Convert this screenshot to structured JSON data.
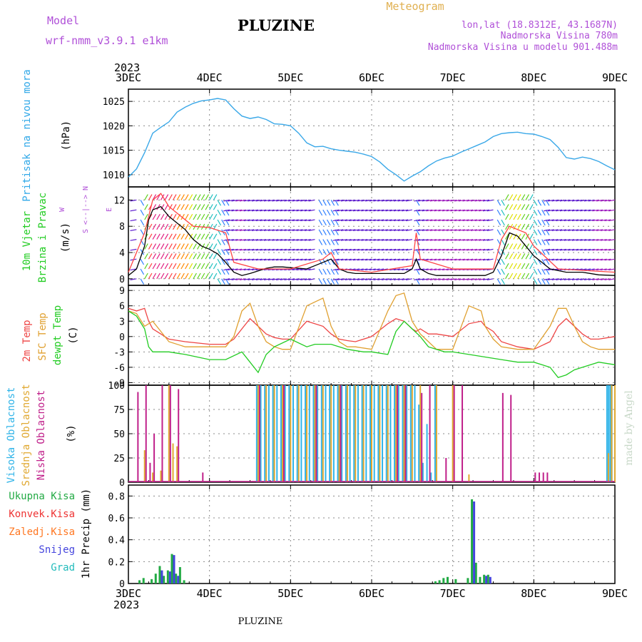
{
  "header": {
    "model_label": "Model",
    "model_value": "wrf-nmm_v3.9.1 e1km",
    "title": "PLUZINE",
    "meteogram_label": "Meteogram",
    "lonlat": "lon,lat (18.8312E, 43.1687N)",
    "altitude": "Nadmorska Visina 780m",
    "model_altitude": "Nadmorska Visina u modelu 901.488m",
    "watermark": "made by Angel",
    "footer": "PLUZINE"
  },
  "time_axis": {
    "year": "2023",
    "labels": [
      "3DEC",
      "4DEC",
      "5DEC",
      "6DEC",
      "7DEC",
      "8DEC",
      "9DEC"
    ]
  },
  "colors": {
    "pressure": "#3aa8e8",
    "temp2m": "#ee4444",
    "sfc_temp": "#e0a030",
    "dewpoint": "#22cc22",
    "high_cloud": "#30b4e8",
    "mid_cloud": "#e0a830",
    "low_cloud": "#c0208a",
    "total_precip": "#22aa44",
    "conv_precip": "#ee3333",
    "frz_precip": "#ff7722",
    "snow": "#4444dd",
    "hail": "#22bbbb",
    "axis": "#000000",
    "grid": "#888888",
    "label_purple": "#b050d8",
    "label_gold": "#e0b050"
  },
  "chart_data": [
    {
      "type": "line",
      "name": "pressure",
      "ylabel": [
        "Pritisak na nivou mora",
        "(hPa)"
      ],
      "yticks": [
        1010,
        1015,
        1020,
        1025
      ],
      "ylim": [
        1007.5,
        1027.5
      ],
      "series": [
        {
          "name": "",
          "x": [
            0,
            0.1,
            0.2,
            0.3,
            0.4,
            0.5,
            0.6,
            0.7,
            0.8,
            0.9,
            1.0,
            1.1,
            1.2,
            1.3,
            1.4,
            1.5,
            1.6,
            1.7,
            1.8,
            1.9,
            2.0,
            2.1,
            2.2,
            2.3,
            2.4,
            2.5,
            2.6,
            2.7,
            2.8,
            2.9,
            3.0,
            3.1,
            3.2,
            3.3,
            3.4,
            3.5,
            3.6,
            3.7,
            3.8,
            3.9,
            4.0,
            4.1,
            4.2,
            4.3,
            4.4,
            4.5,
            4.6,
            4.7,
            4.8,
            4.9,
            5.0,
            5.1,
            5.2,
            5.3,
            5.4,
            5.5,
            5.6,
            5.7,
            5.8,
            5.9,
            6.0
          ],
          "values": [
            1009.5,
            1011.2,
            1014.5,
            1018.5,
            1019.7,
            1020.8,
            1022.8,
            1023.8,
            1024.6,
            1025.1,
            1025.3,
            1025.6,
            1025.3,
            1023.5,
            1022.0,
            1021.5,
            1021.8,
            1021.3,
            1020.4,
            1020.3,
            1020.0,
            1018.5,
            1016.5,
            1015.7,
            1015.8,
            1015.3,
            1015.0,
            1014.8,
            1014.6,
            1014.2,
            1013.7,
            1012.6,
            1011.1,
            1010.0,
            1008.7,
            1009.7,
            1010.6,
            1011.8,
            1012.8,
            1013.4,
            1013.8,
            1014.6,
            1015.3,
            1016.0,
            1016.7,
            1017.8,
            1018.4,
            1018.6,
            1018.7,
            1018.4,
            1018.3,
            1017.8,
            1017.2,
            1015.6,
            1013.5,
            1013.2,
            1013.6,
            1013.3,
            1012.7,
            1011.8,
            1011.0
          ]
        }
      ]
    },
    {
      "type": "line",
      "name": "wind",
      "ylabel": [
        "10m Vjetar",
        "Brzina i Pravac",
        "(m/s)"
      ],
      "compass": {
        "north": "N",
        "south": "S",
        "east": "E",
        "west": "W"
      },
      "yticks": [
        0,
        4,
        8,
        12
      ],
      "ylim": [
        -1,
        14
      ],
      "series": [
        {
          "name": "speed",
          "x": [
            0,
            0.1,
            0.2,
            0.25,
            0.3,
            0.4,
            0.5,
            0.6,
            0.7,
            0.8,
            0.9,
            1.0,
            1.1,
            1.2,
            1.3,
            1.4,
            1.5,
            1.6,
            1.7,
            1.8,
            1.9,
            2.0,
            2.2,
            2.4,
            2.5,
            2.6,
            2.7,
            2.8,
            2.9,
            3.0,
            3.2,
            3.4,
            3.5,
            3.55,
            3.6,
            3.7,
            3.8,
            4.0,
            4.2,
            4.4,
            4.5,
            4.6,
            4.7,
            4.8,
            4.9,
            5.0,
            5.2,
            5.4,
            5.6,
            5.8,
            6.0
          ],
          "values": [
            0.5,
            1.5,
            5.0,
            9.0,
            10.5,
            11.0,
            9.5,
            8.5,
            7.5,
            6.0,
            5.0,
            4.5,
            3.8,
            2.5,
            1.0,
            0.5,
            0.8,
            1.2,
            1.6,
            1.8,
            1.8,
            1.7,
            1.5,
            2.5,
            3.0,
            1.5,
            1.0,
            0.8,
            0.8,
            0.8,
            0.8,
            0.8,
            1.5,
            3.0,
            1.5,
            0.8,
            0.5,
            0.5,
            0.5,
            0.5,
            1.0,
            3.5,
            7.0,
            6.5,
            5.0,
            3.5,
            1.5,
            1.0,
            1.0,
            0.6,
            0.5
          ]
        },
        {
          "name": "gust",
          "x": [
            0,
            0.2,
            0.3,
            0.4,
            0.5,
            0.6,
            0.8,
            1.0,
            1.2,
            1.3,
            1.6,
            2.0,
            2.4,
            2.5,
            2.6,
            3.0,
            3.5,
            3.55,
            3.6,
            4.0,
            4.5,
            4.6,
            4.7,
            4.9,
            5.0,
            5.3,
            6.0
          ],
          "values": [
            1.0,
            7.0,
            12.0,
            13.0,
            11.0,
            10.0,
            8.0,
            7.8,
            7.0,
            2.5,
            1.5,
            1.5,
            3.0,
            4.0,
            1.5,
            1.0,
            2.0,
            7.0,
            3.0,
            1.5,
            1.5,
            6.0,
            8.0,
            7.0,
            5.0,
            1.5,
            1.0
          ]
        }
      ]
    },
    {
      "type": "line",
      "name": "temperature",
      "ylabel": [
        "2m Temp",
        "SFC Temp",
        "dewpt Temp",
        "(C)"
      ],
      "yticks": [
        -9,
        -6,
        -3,
        0,
        3,
        6,
        9
      ],
      "ylim": [
        -9.5,
        10
      ],
      "series": [
        {
          "name": "2m Temp",
          "x": [
            0,
            0.1,
            0.2,
            0.25,
            0.3,
            0.4,
            0.5,
            0.7,
            1.0,
            1.2,
            1.3,
            1.4,
            1.5,
            1.6,
            1.7,
            1.8,
            1.9,
            2.0,
            2.2,
            2.4,
            2.5,
            2.6,
            2.7,
            2.8,
            3.0,
            3.2,
            3.3,
            3.4,
            3.5,
            3.55,
            3.6,
            3.7,
            3.8,
            4.0,
            4.2,
            4.35,
            4.4,
            4.5,
            4.6,
            4.8,
            5.0,
            5.2,
            5.3,
            5.4,
            5.5,
            5.6,
            5.7,
            5.8,
            6.0
          ],
          "values": [
            5.5,
            5.0,
            5.5,
            3.0,
            1.5,
            0.5,
            -0.5,
            -1.0,
            -1.5,
            -1.5,
            -0.5,
            1.5,
            3.5,
            2.0,
            0.5,
            -0.2,
            -0.5,
            -0.5,
            3.0,
            2.0,
            0.5,
            -0.5,
            -0.8,
            -1.0,
            0.0,
            2.5,
            3.5,
            3.0,
            1.5,
            1.0,
            1.5,
            0.5,
            0.5,
            0.0,
            2.5,
            3.0,
            2.0,
            1.0,
            -1.0,
            -2.0,
            -2.5,
            -1.0,
            2.0,
            3.5,
            2.0,
            0.5,
            -0.5,
            -0.5,
            0.0
          ]
        },
        {
          "name": "SFC Temp",
          "x": [
            0,
            0.1,
            0.2,
            0.3,
            0.4,
            0.5,
            0.7,
            1.0,
            1.2,
            1.3,
            1.4,
            1.5,
            1.6,
            1.7,
            1.8,
            1.9,
            2.0,
            2.2,
            2.4,
            2.5,
            2.6,
            2.7,
            2.8,
            3.0,
            3.2,
            3.3,
            3.4,
            3.5,
            3.6,
            3.7,
            3.8,
            4.0,
            4.2,
            4.35,
            4.4,
            4.5,
            4.6,
            4.8,
            5.0,
            5.2,
            5.3,
            5.4,
            5.5,
            5.6,
            5.7,
            5.8,
            6.0
          ],
          "values": [
            5.0,
            4.5,
            2.0,
            3.0,
            1.0,
            -1.0,
            -2.0,
            -2.0,
            -2.0,
            0.0,
            5.0,
            6.5,
            2.0,
            -1.0,
            -2.0,
            -2.5,
            -2.5,
            6.0,
            7.5,
            2.0,
            -1.0,
            -2.0,
            -2.0,
            -2.5,
            5.0,
            8.0,
            8.5,
            3.0,
            0.5,
            -1.0,
            -2.5,
            -2.5,
            6.0,
            5.0,
            2.0,
            -0.5,
            -2.0,
            -2.5,
            -2.5,
            2.0,
            5.5,
            5.5,
            2.0,
            -1.0,
            -2.0,
            -2.5,
            -2.5
          ]
        },
        {
          "name": "dewpt Temp",
          "x": [
            0,
            0.1,
            0.2,
            0.25,
            0.3,
            0.5,
            0.7,
            1.0,
            1.2,
            1.4,
            1.5,
            1.6,
            1.7,
            1.8,
            2.0,
            2.2,
            2.3,
            2.5,
            2.7,
            2.9,
            3.0,
            3.2,
            3.3,
            3.4,
            3.5,
            3.6,
            3.7,
            3.8,
            3.9,
            4.0,
            4.2,
            4.4,
            4.6,
            4.8,
            5.0,
            5.2,
            5.3,
            5.4,
            5.5,
            5.6,
            5.8,
            6.0
          ],
          "values": [
            5.0,
            4.0,
            1.5,
            -2.0,
            -3.0,
            -3.0,
            -3.5,
            -4.5,
            -4.5,
            -3.0,
            -5.0,
            -7.0,
            -3.5,
            -2.0,
            -0.5,
            -2.0,
            -1.5,
            -1.5,
            -2.5,
            -3.0,
            -3.0,
            -3.5,
            1.0,
            3.0,
            1.5,
            0.0,
            -2.0,
            -2.5,
            -3.0,
            -3.0,
            -3.5,
            -4.0,
            -4.5,
            -5.0,
            -5.0,
            -6.0,
            -8.0,
            -7.5,
            -6.5,
            -6.0,
            -5.0,
            -5.5
          ]
        }
      ]
    },
    {
      "type": "bar",
      "name": "cloud_cover",
      "ylabel": [
        "Visoka Oblacnost",
        "Srednja Oblacnost",
        "Niska Oblacnost",
        "(%)"
      ],
      "yticks": [
        0,
        25,
        50,
        75,
        100
      ],
      "ylim": [
        0,
        100
      ],
      "series": [
        {
          "name": "Visoka Oblacnost",
          "x": [
            1.6,
            1.65,
            1.7,
            1.75,
            1.8,
            1.85,
            1.9,
            1.95,
            2.0,
            2.05,
            2.1,
            2.15,
            2.2,
            2.25,
            2.3,
            2.35,
            2.4,
            2.45,
            2.5,
            2.55,
            2.6,
            2.65,
            2.7,
            2.75,
            2.8,
            2.85,
            2.9,
            2.95,
            3.0,
            3.05,
            3.1,
            3.15,
            3.2,
            3.25,
            3.3,
            3.35,
            3.4,
            3.45,
            3.5,
            3.55,
            3.6,
            3.65,
            3.7,
            3.75,
            3.8,
            5.92,
            5.94,
            5.96,
            5.98
          ],
          "values": [
            100,
            100,
            100,
            100,
            100,
            100,
            100,
            100,
            100,
            100,
            100,
            100,
            100,
            100,
            100,
            100,
            100,
            100,
            100,
            100,
            100,
            100,
            100,
            100,
            100,
            100,
            100,
            100,
            100,
            100,
            100,
            100,
            100,
            100,
            100,
            100,
            100,
            100,
            100,
            100,
            80,
            20,
            60,
            10,
            100,
            100,
            100,
            100,
            100
          ]
        },
        {
          "name": "Srednja Oblacnost",
          "x": [
            0.2,
            0.3,
            0.4,
            0.5,
            0.55,
            0.6,
            1.6,
            1.7,
            1.8,
            1.9,
            2.0,
            2.1,
            2.2,
            2.3,
            2.4,
            2.5,
            2.6,
            2.7,
            2.8,
            2.9,
            3.0,
            3.1,
            3.2,
            3.3,
            3.4,
            3.5,
            3.6,
            3.8,
            4.0,
            4.2,
            5.92,
            5.96,
            6.0
          ],
          "values": [
            33,
            10,
            12,
            100,
            40,
            37,
            100,
            100,
            100,
            100,
            100,
            100,
            100,
            100,
            100,
            100,
            100,
            100,
            100,
            100,
            100,
            100,
            100,
            100,
            100,
            100,
            100,
            100,
            100,
            8,
            30,
            100,
            100
          ]
        },
        {
          "name": "Niska Oblacnost",
          "x": [
            0.1,
            0.2,
            0.25,
            0.3,
            0.4,
            0.5,
            0.6,
            0.9,
            1.6,
            1.9,
            2.3,
            2.6,
            3.3,
            3.4,
            3.6,
            3.7,
            3.9,
            4.0,
            4.1,
            4.6,
            4.7,
            5.0,
            5.05,
            5.1,
            5.15
          ],
          "values": [
            93,
            100,
            20,
            50,
            100,
            100,
            96,
            10,
            100,
            100,
            100,
            100,
            100,
            100,
            92,
            100,
            25,
            100,
            100,
            92,
            90,
            10,
            10,
            10,
            10
          ]
        }
      ]
    },
    {
      "type": "bar",
      "name": "precipitation",
      "ylabel": [
        "1hr Precip (mm)"
      ],
      "legend": [
        "Ukupna Kisa",
        "Konvek.Kisa",
        "Zaledj.Kisa",
        "Snijeg",
        "Grad"
      ],
      "yticks": [
        0,
        0.2,
        0.4,
        0.6,
        0.8
      ],
      "ylim": [
        0,
        0.9
      ],
      "series": [
        {
          "name": "Ukupna Kisa",
          "x": [
            0.15,
            0.2,
            0.3,
            0.35,
            0.4,
            0.45,
            0.5,
            0.55,
            0.6,
            0.65,
            0.7,
            3.8,
            3.85,
            3.9,
            3.95,
            4.05,
            4.2,
            4.25,
            4.3,
            4.35,
            4.4,
            4.45
          ],
          "values": [
            0.03,
            0.05,
            0.04,
            0.09,
            0.16,
            0.07,
            0.12,
            0.27,
            0.09,
            0.15,
            0.03,
            0.02,
            0.03,
            0.05,
            0.06,
            0.04,
            0.05,
            0.77,
            0.19,
            0.06,
            0.08,
            0.08
          ]
        },
        {
          "name": "Snijeg",
          "x": [
            0.4,
            0.5,
            0.55,
            0.6,
            4.25,
            4.4,
            4.45
          ],
          "values": [
            0.12,
            0.11,
            0.26,
            0.07,
            0.75,
            0.07,
            0.06
          ]
        }
      ]
    }
  ]
}
